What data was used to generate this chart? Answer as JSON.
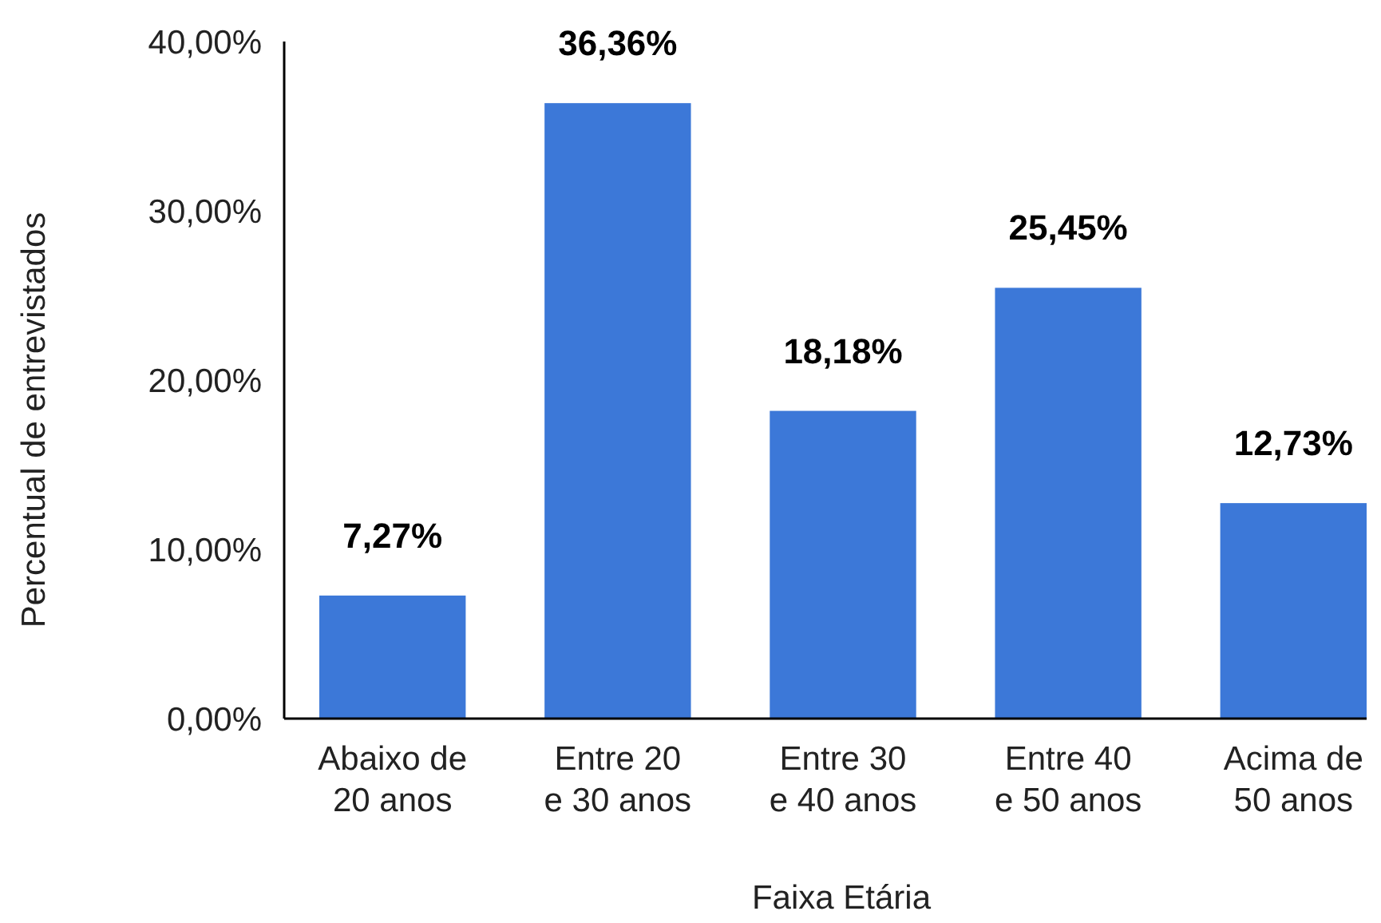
{
  "chart_data": {
    "type": "bar",
    "xlabel": "Faixa Etária",
    "ylabel": "Percentual de entrevistados",
    "categories": [
      "Abaixo de 20 anos",
      "Entre 20 e 30 anos",
      "Entre 30 e 40 anos",
      "Entre 40 e 50 anos",
      "Acima de 50 anos"
    ],
    "values": [
      7.27,
      36.36,
      18.18,
      25.45,
      12.73
    ],
    "value_labels": [
      "7,27%",
      "36,36%",
      "18,18%",
      "25,45%",
      "12,73%"
    ],
    "color": "#3c78d8",
    "ylim": [
      0,
      40
    ],
    "yticks": [
      {
        "value": 0,
        "label": "0,00%"
      },
      {
        "value": 10,
        "label": "10,00%"
      },
      {
        "value": 20,
        "label": "20,00%"
      },
      {
        "value": 30,
        "label": "30,00%"
      },
      {
        "value": 40,
        "label": "40,00%"
      }
    ],
    "grid": false
  }
}
